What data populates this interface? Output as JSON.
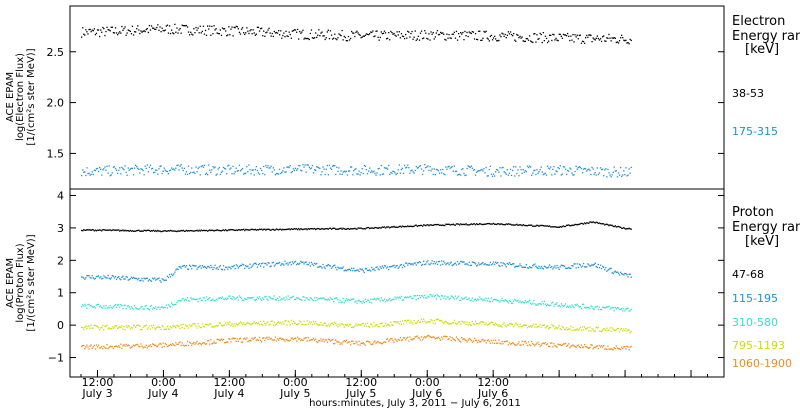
{
  "chart_data": [
    {
      "type": "scatter",
      "panel": "electron",
      "ylabel": [
        "ACE EPAM",
        "log(Electron Flux)",
        "[1/(cm²s ster MeV)]"
      ],
      "ylim": [
        1.15,
        2.95
      ],
      "yticks": [
        1.5,
        2.0,
        2.5
      ],
      "ytick_labels": [
        "1.5",
        "2.0",
        "2.5"
      ],
      "legend_title": [
        "Electron",
        "Energy ranges",
        "[keV]"
      ],
      "series": [
        {
          "name": "38-53",
          "color": "#000000",
          "x": [
            -12,
            0,
            12,
            24,
            36,
            48,
            60,
            72,
            84
          ],
          "y": [
            2.7,
            2.73,
            2.71,
            2.68,
            2.66,
            2.67,
            2.66,
            2.64,
            2.63
          ]
        },
        {
          "name": "175-315",
          "color": "#1e90dc",
          "x": [
            -12,
            0,
            12,
            24,
            36,
            48,
            60,
            72,
            84
          ],
          "y": [
            1.33,
            1.35,
            1.34,
            1.35,
            1.34,
            1.35,
            1.33,
            1.34,
            1.32
          ]
        }
      ]
    },
    {
      "type": "scatter",
      "panel": "proton",
      "ylabel": [
        "ACE EPAM",
        "log(Proton Flux)",
        "[1/(cm²s ster MeV)]"
      ],
      "ylim": [
        -1.6,
        4.2
      ],
      "yticks": [
        -1,
        0,
        1,
        2,
        3,
        4
      ],
      "ytick_labels": [
        "−1",
        "0",
        "1",
        "2",
        "3",
        "4"
      ],
      "legend_title": [
        "Proton",
        "Energy ranges",
        "[keV]"
      ],
      "series": [
        {
          "name": "47-68",
          "color": "#000000",
          "x": [
            -12,
            0,
            12,
            24,
            36,
            48,
            60,
            72,
            78,
            84
          ],
          "y": [
            2.95,
            2.92,
            2.95,
            2.98,
            3.0,
            3.1,
            3.15,
            3.05,
            3.2,
            3.0
          ]
        },
        {
          "name": "115-195",
          "color": "#1e90dc",
          "x": [
            -12,
            0,
            3,
            12,
            24,
            36,
            48,
            60,
            72,
            78,
            84
          ],
          "y": [
            1.5,
            1.4,
            1.8,
            1.8,
            1.95,
            1.7,
            1.95,
            1.9,
            1.8,
            1.9,
            1.55
          ]
        },
        {
          "name": "310-580",
          "color": "#33e0d0",
          "x": [
            -12,
            0,
            3,
            12,
            24,
            36,
            48,
            60,
            72,
            84
          ],
          "y": [
            0.6,
            0.55,
            0.8,
            0.85,
            0.85,
            0.75,
            0.9,
            0.8,
            0.65,
            0.5
          ]
        },
        {
          "name": "795-1193",
          "color": "#c8e000",
          "x": [
            -12,
            0,
            12,
            24,
            36,
            48,
            60,
            72,
            84
          ],
          "y": [
            -0.05,
            -0.05,
            0.05,
            0.1,
            0.0,
            0.15,
            0.05,
            -0.05,
            -0.15
          ]
        },
        {
          "name": "1060-1900",
          "color": "#f08a1e",
          "x": [
            -12,
            0,
            12,
            24,
            36,
            48,
            60,
            72,
            84
          ],
          "y": [
            -0.65,
            -0.6,
            -0.45,
            -0.4,
            -0.55,
            -0.35,
            -0.5,
            -0.6,
            -0.7
          ]
        }
      ]
    }
  ],
  "xaxis": {
    "xlim": [
      -17,
      102
    ],
    "tick_hours": [
      -12,
      0,
      12,
      24,
      36,
      48,
      60,
      72,
      84,
      96
    ],
    "time_labels": [
      "12:00",
      "0:00",
      "12:00",
      "0:00",
      "12:00",
      "0:00",
      "12:00"
    ],
    "date_labels": [
      "July 3",
      "July 4",
      "July 4",
      "July 5",
      "July 5",
      "July 6",
      "July 6"
    ],
    "label_hours": [
      -12,
      0,
      12,
      24,
      36,
      48,
      60
    ],
    "xlabel": "hours:minutes,  July  3, 2011 − July  6, 2011"
  },
  "colors": {
    "axis": "#000000",
    "background": "#ffffff"
  }
}
